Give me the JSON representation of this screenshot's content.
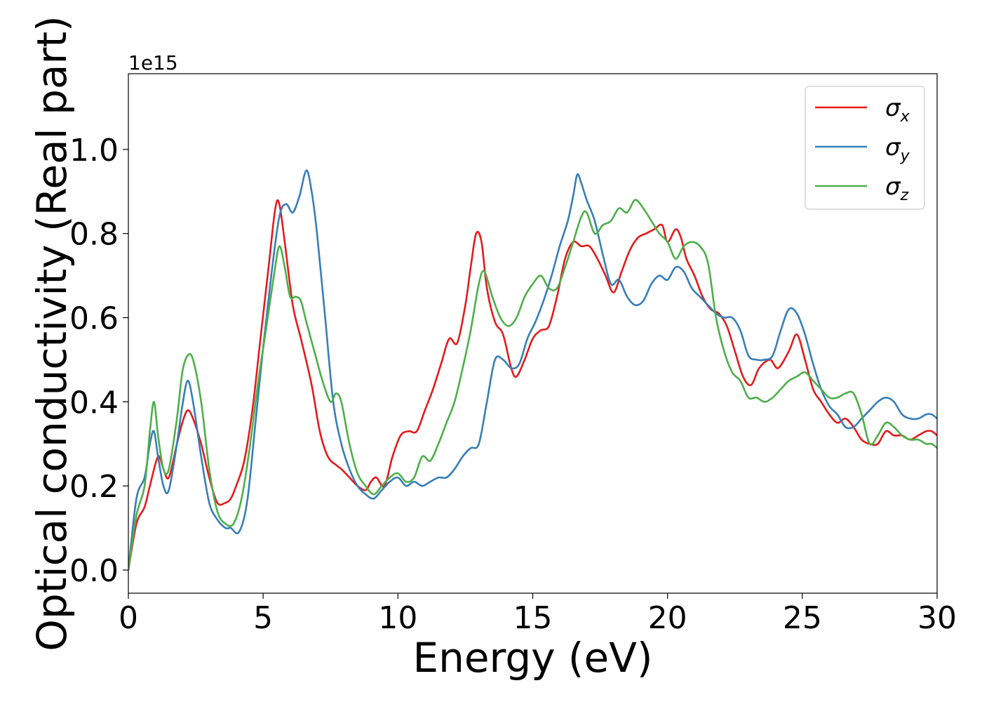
{
  "chart_data": {
    "type": "line",
    "title": "",
    "xlabel": "Energy (eV)",
    "ylabel": "Optical conductivity (Real part)",
    "y_offset_label": "1e15",
    "xlim": [
      0,
      30
    ],
    "ylim": [
      -0.055,
      1.18
    ],
    "x_ticks": [
      0,
      5,
      10,
      15,
      20,
      25,
      30
    ],
    "x_tick_labels": [
      "0",
      "5",
      "10",
      "15",
      "20",
      "25",
      "30"
    ],
    "y_ticks": [
      0.0,
      0.2,
      0.4,
      0.6,
      0.8,
      1.0
    ],
    "y_tick_labels": [
      "0.0",
      "0.2",
      "0.4",
      "0.6",
      "0.8",
      "1.0"
    ],
    "grid": false,
    "legend_position": "top-right",
    "series": [
      {
        "name": "σ",
        "subscript": "x",
        "color": "#e41a1c",
        "x": [
          0,
          0.3,
          0.6,
          0.8,
          1.1,
          1.3,
          1.5,
          1.8,
          2.0,
          2.2,
          2.4,
          2.7,
          3.0,
          3.3,
          3.6,
          3.8,
          4.0,
          4.3,
          4.6,
          4.9,
          5.2,
          5.45,
          5.6,
          5.8,
          6.1,
          6.4,
          6.8,
          7.1,
          7.4,
          7.7,
          7.9,
          8.2,
          8.5,
          8.8,
          9.0,
          9.2,
          9.5,
          9.8,
          10.1,
          10.4,
          10.7,
          11.0,
          11.3,
          11.6,
          11.9,
          12.2,
          12.5,
          12.7,
          12.9,
          13.1,
          13.3,
          13.6,
          13.9,
          14.2,
          14.4,
          14.7,
          15.0,
          15.3,
          15.6,
          15.9,
          16.2,
          16.5,
          16.8,
          17.1,
          17.4,
          17.7,
          18.0,
          18.3,
          18.6,
          18.9,
          19.2,
          19.5,
          19.8,
          20.0,
          20.3,
          20.5,
          20.7,
          21.0,
          21.3,
          21.6,
          21.9,
          22.2,
          22.5,
          22.8,
          23.1,
          23.4,
          23.8,
          24.1,
          24.5,
          24.8,
          25.1,
          25.4,
          25.7,
          26.0,
          26.3,
          26.6,
          26.9,
          27.2,
          27.5,
          27.8,
          28.1,
          28.4,
          28.7,
          29.0,
          29.3,
          29.6,
          29.8,
          30.0
        ],
        "y": [
          0,
          0.11,
          0.15,
          0.2,
          0.27,
          0.24,
          0.22,
          0.3,
          0.35,
          0.38,
          0.36,
          0.3,
          0.22,
          0.16,
          0.16,
          0.17,
          0.2,
          0.26,
          0.38,
          0.55,
          0.72,
          0.86,
          0.87,
          0.78,
          0.63,
          0.55,
          0.44,
          0.33,
          0.27,
          0.25,
          0.24,
          0.22,
          0.2,
          0.19,
          0.21,
          0.22,
          0.2,
          0.27,
          0.32,
          0.33,
          0.33,
          0.38,
          0.43,
          0.49,
          0.55,
          0.54,
          0.63,
          0.72,
          0.8,
          0.78,
          0.67,
          0.59,
          0.56,
          0.48,
          0.46,
          0.5,
          0.55,
          0.57,
          0.58,
          0.65,
          0.74,
          0.78,
          0.77,
          0.77,
          0.74,
          0.7,
          0.66,
          0.71,
          0.76,
          0.79,
          0.8,
          0.81,
          0.82,
          0.78,
          0.81,
          0.79,
          0.74,
          0.7,
          0.65,
          0.62,
          0.61,
          0.58,
          0.52,
          0.46,
          0.44,
          0.48,
          0.5,
          0.48,
          0.52,
          0.56,
          0.5,
          0.43,
          0.4,
          0.37,
          0.35,
          0.36,
          0.34,
          0.31,
          0.3,
          0.3,
          0.33,
          0.32,
          0.32,
          0.31,
          0.32,
          0.33,
          0.33,
          0.32
        ]
      },
      {
        "name": "σ",
        "subscript": "y",
        "color": "#377eb8",
        "x": [
          0,
          0.3,
          0.6,
          0.8,
          0.95,
          1.1,
          1.3,
          1.5,
          1.8,
          2.0,
          2.2,
          2.4,
          2.7,
          3.0,
          3.3,
          3.6,
          3.8,
          4.1,
          4.4,
          4.7,
          5.0,
          5.3,
          5.6,
          5.85,
          6.1,
          6.35,
          6.6,
          6.8,
          7.0,
          7.3,
          7.6,
          7.9,
          8.2,
          8.5,
          8.8,
          9.1,
          9.4,
          9.7,
          10.0,
          10.3,
          10.6,
          10.9,
          11.2,
          11.5,
          11.8,
          12.1,
          12.4,
          12.7,
          13.0,
          13.3,
          13.6,
          13.9,
          14.2,
          14.5,
          14.8,
          15.1,
          15.4,
          15.7,
          16.0,
          16.3,
          16.5,
          16.65,
          16.8,
          17.0,
          17.3,
          17.6,
          17.9,
          18.2,
          18.5,
          18.8,
          19.1,
          19.4,
          19.7,
          20.0,
          20.3,
          20.6,
          20.9,
          21.2,
          21.5,
          21.8,
          22.1,
          22.4,
          22.7,
          23.0,
          23.3,
          23.6,
          23.9,
          24.2,
          24.5,
          24.8,
          25.1,
          25.4,
          25.7,
          26.0,
          26.3,
          26.6,
          26.9,
          27.2,
          27.5,
          27.8,
          28.1,
          28.4,
          28.7,
          29.0,
          29.3,
          29.6,
          29.8,
          30.0
        ],
        "y": [
          0,
          0.17,
          0.22,
          0.3,
          0.33,
          0.27,
          0.2,
          0.19,
          0.3,
          0.39,
          0.45,
          0.4,
          0.27,
          0.16,
          0.12,
          0.1,
          0.1,
          0.09,
          0.16,
          0.34,
          0.53,
          0.7,
          0.84,
          0.87,
          0.85,
          0.89,
          0.95,
          0.9,
          0.8,
          0.6,
          0.4,
          0.3,
          0.24,
          0.2,
          0.18,
          0.17,
          0.19,
          0.21,
          0.22,
          0.2,
          0.21,
          0.2,
          0.21,
          0.22,
          0.22,
          0.24,
          0.27,
          0.29,
          0.3,
          0.4,
          0.5,
          0.5,
          0.48,
          0.49,
          0.55,
          0.59,
          0.64,
          0.7,
          0.77,
          0.83,
          0.89,
          0.94,
          0.92,
          0.88,
          0.83,
          0.75,
          0.68,
          0.69,
          0.65,
          0.63,
          0.64,
          0.68,
          0.7,
          0.69,
          0.72,
          0.71,
          0.67,
          0.65,
          0.63,
          0.61,
          0.6,
          0.6,
          0.57,
          0.51,
          0.5,
          0.5,
          0.51,
          0.57,
          0.62,
          0.61,
          0.56,
          0.49,
          0.43,
          0.39,
          0.37,
          0.34,
          0.34,
          0.36,
          0.38,
          0.4,
          0.41,
          0.4,
          0.37,
          0.36,
          0.36,
          0.37,
          0.37,
          0.36
        ],
        "_unused": null
      },
      {
        "name": "σ",
        "subscript": "z",
        "color": "#4daf4a",
        "x": [
          0,
          0.3,
          0.6,
          0.8,
          0.95,
          1.1,
          1.3,
          1.5,
          1.8,
          2.0,
          2.2,
          2.4,
          2.7,
          3.0,
          3.3,
          3.6,
          3.9,
          4.2,
          4.5,
          4.8,
          5.1,
          5.4,
          5.6,
          5.8,
          6.0,
          6.2,
          6.4,
          6.6,
          6.9,
          7.2,
          7.5,
          7.7,
          7.9,
          8.2,
          8.5,
          8.8,
          9.1,
          9.4,
          9.7,
          10.0,
          10.3,
          10.6,
          10.9,
          11.2,
          11.5,
          11.8,
          12.1,
          12.4,
          12.7,
          13.0,
          13.2,
          13.5,
          13.8,
          14.1,
          14.4,
          14.7,
          15.0,
          15.3,
          15.6,
          15.9,
          16.2,
          16.5,
          16.8,
          17.0,
          17.3,
          17.6,
          17.9,
          18.2,
          18.5,
          18.8,
          19.1,
          19.4,
          19.7,
          20.0,
          20.3,
          20.6,
          20.9,
          21.2,
          21.5,
          21.8,
          22.1,
          22.4,
          22.7,
          23.0,
          23.3,
          23.6,
          23.9,
          24.2,
          24.5,
          24.8,
          25.1,
          25.4,
          25.7,
          26.0,
          26.3,
          26.6,
          26.9,
          27.2,
          27.5,
          27.8,
          28.1,
          28.4,
          28.7,
          29.0,
          29.3,
          29.6,
          29.8,
          30.0
        ],
        "y": [
          0,
          0.13,
          0.2,
          0.33,
          0.4,
          0.32,
          0.24,
          0.24,
          0.36,
          0.47,
          0.51,
          0.5,
          0.4,
          0.24,
          0.14,
          0.11,
          0.11,
          0.17,
          0.29,
          0.44,
          0.57,
          0.7,
          0.77,
          0.72,
          0.65,
          0.65,
          0.64,
          0.59,
          0.52,
          0.45,
          0.4,
          0.42,
          0.4,
          0.3,
          0.23,
          0.2,
          0.18,
          0.2,
          0.22,
          0.23,
          0.21,
          0.22,
          0.27,
          0.26,
          0.3,
          0.35,
          0.4,
          0.48,
          0.57,
          0.68,
          0.71,
          0.65,
          0.6,
          0.58,
          0.6,
          0.65,
          0.68,
          0.7,
          0.67,
          0.67,
          0.72,
          0.78,
          0.84,
          0.85,
          0.8,
          0.82,
          0.83,
          0.86,
          0.85,
          0.88,
          0.86,
          0.83,
          0.8,
          0.78,
          0.74,
          0.77,
          0.78,
          0.77,
          0.73,
          0.6,
          0.52,
          0.47,
          0.45,
          0.41,
          0.41,
          0.4,
          0.41,
          0.43,
          0.45,
          0.46,
          0.47,
          0.45,
          0.43,
          0.41,
          0.41,
          0.42,
          0.42,
          0.37,
          0.3,
          0.32,
          0.35,
          0.34,
          0.32,
          0.31,
          0.31,
          0.3,
          0.3,
          0.29
        ]
      }
    ]
  }
}
